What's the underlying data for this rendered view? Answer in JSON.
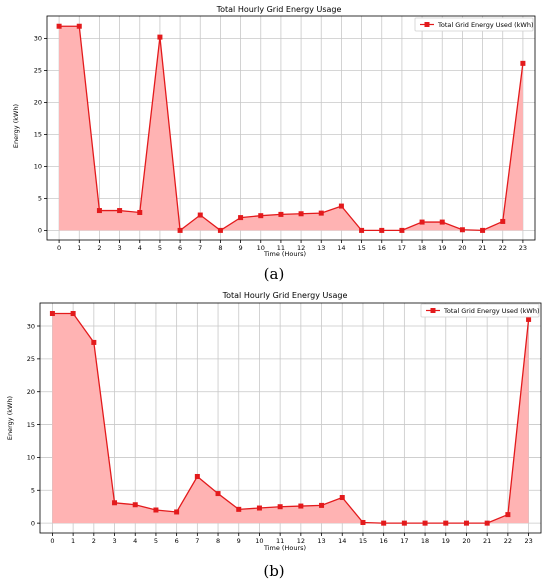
{
  "colors": {
    "line": "#e31a1c",
    "fill": "#ffb3b3",
    "marker": "#e31a1c"
  },
  "chart_data": [
    {
      "type": "area",
      "panel_label": "(a)",
      "title": "Total Hourly Grid Energy Usage",
      "xlabel": "Time (Hours)",
      "ylabel": "Energy (kWh)",
      "legend_label": "Total Grid Energy Used (kWh)",
      "legend_position": "top-right",
      "grid": true,
      "x": [
        0,
        1,
        2,
        3,
        4,
        5,
        6,
        7,
        8,
        9,
        10,
        11,
        12,
        13,
        14,
        15,
        16,
        17,
        18,
        19,
        20,
        21,
        22,
        23
      ],
      "values": [
        31.9,
        31.9,
        3.1,
        3.1,
        2.8,
        30.2,
        0.0,
        2.4,
        0.0,
        2.0,
        2.3,
        2.5,
        2.6,
        2.7,
        3.8,
        0.0,
        0.0,
        0.0,
        1.3,
        1.3,
        0.1,
        0.0,
        1.4,
        26.1
      ],
      "xlim": [
        -0.6,
        23.6
      ],
      "ylim": [
        -1.5,
        33.5
      ],
      "yticks": [
        0,
        5,
        10,
        15,
        20,
        25,
        30
      ],
      "xticks": [
        0,
        1,
        2,
        3,
        4,
        5,
        6,
        7,
        8,
        9,
        10,
        11,
        12,
        13,
        14,
        15,
        16,
        17,
        18,
        19,
        20,
        21,
        22,
        23
      ]
    },
    {
      "type": "area",
      "panel_label": "(b)",
      "title": "Total Hourly Grid Energy Usage",
      "xlabel": "Time (Hours)",
      "ylabel": "Energy (kWh)",
      "legend_label": "Total Grid Energy Used (kWh)",
      "legend_position": "top-right",
      "grid": true,
      "x": [
        0,
        1,
        2,
        3,
        4,
        5,
        6,
        7,
        8,
        9,
        10,
        11,
        12,
        13,
        14,
        15,
        16,
        17,
        18,
        19,
        20,
        21,
        22,
        23
      ],
      "values": [
        31.9,
        31.9,
        27.5,
        3.1,
        2.8,
        2.0,
        1.7,
        7.1,
        4.5,
        2.1,
        2.3,
        2.5,
        2.6,
        2.7,
        3.9,
        0.1,
        0.0,
        0.0,
        0.0,
        0.0,
        0.0,
        0.0,
        1.3,
        31.0
      ],
      "xlim": [
        -0.6,
        23.6
      ],
      "ylim": [
        -1.5,
        33.5
      ],
      "yticks": [
        0,
        5,
        10,
        15,
        20,
        25,
        30
      ],
      "xticks": [
        0,
        1,
        2,
        3,
        4,
        5,
        6,
        7,
        8,
        9,
        10,
        11,
        12,
        13,
        14,
        15,
        16,
        17,
        18,
        19,
        20,
        21,
        22,
        23
      ]
    }
  ]
}
